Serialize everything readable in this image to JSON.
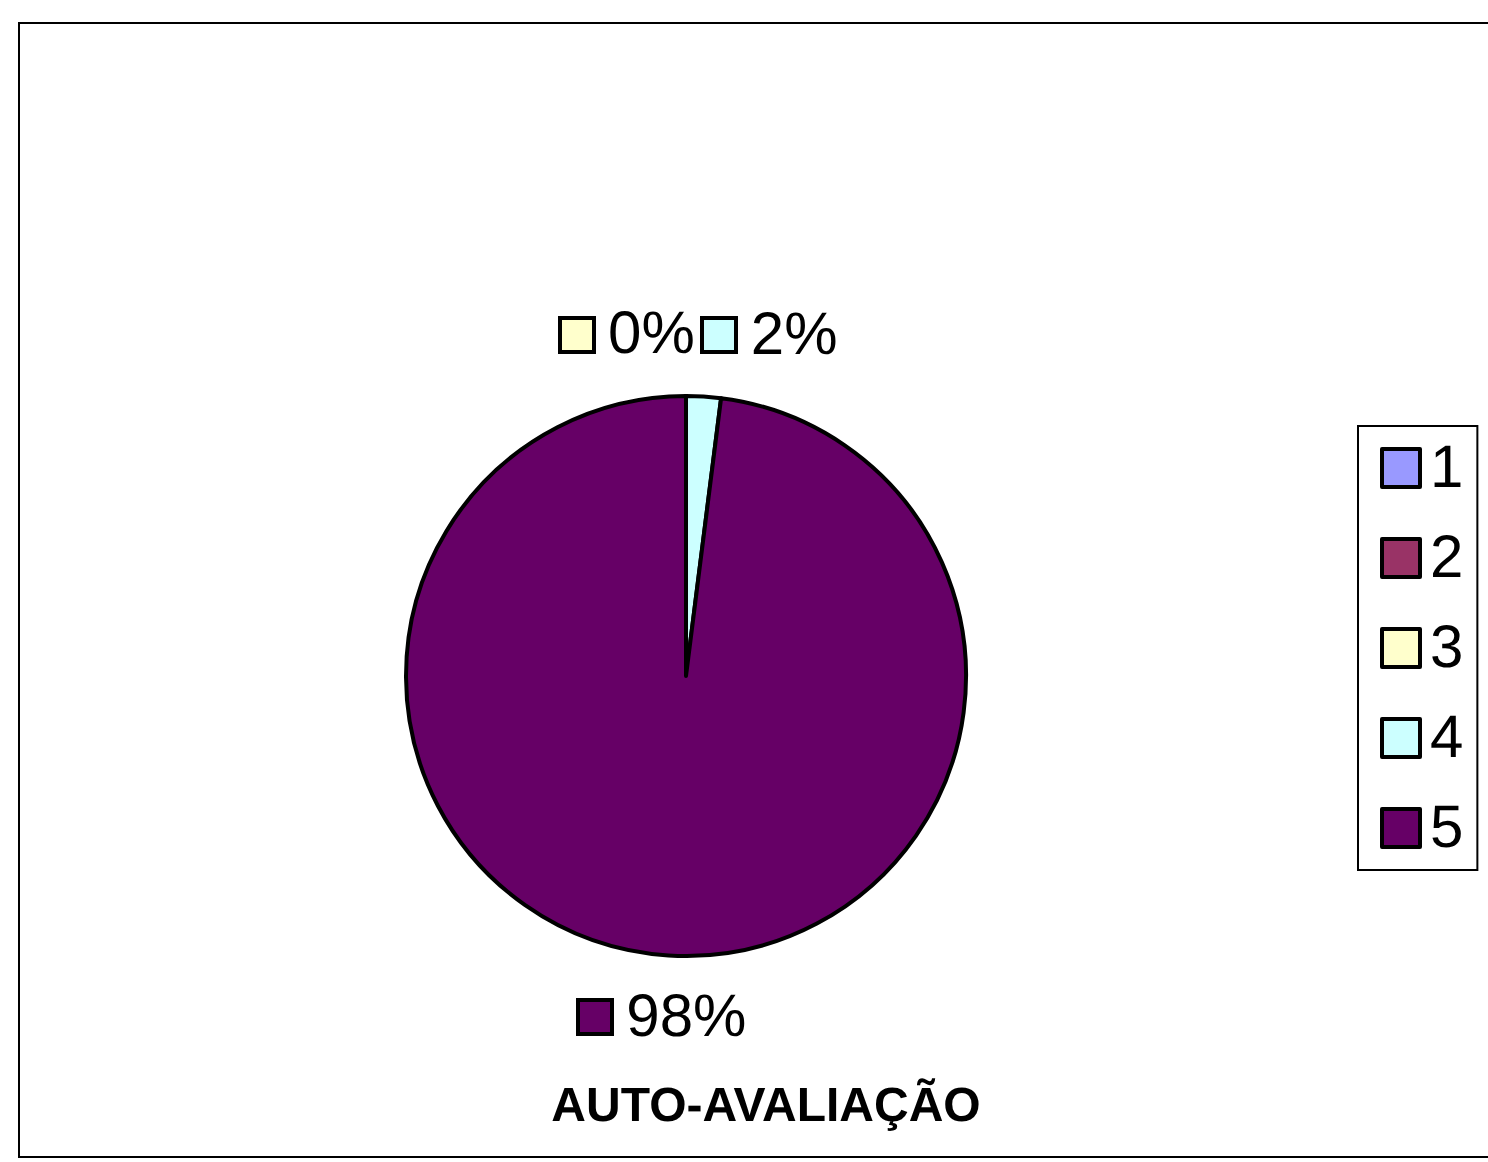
{
  "chart_data": {
    "type": "pie",
    "title": "AUTO-AVALIAÇÃO",
    "categories": [
      "1",
      "2",
      "3",
      "4",
      "5"
    ],
    "values": [
      0,
      0,
      0,
      2,
      98
    ],
    "colors": [
      "#9999ff",
      "#993366",
      "#ffffcc",
      "#ccffff",
      "#660066"
    ],
    "value_labels": [
      null,
      null,
      "0%",
      "2%",
      "98%"
    ],
    "legend": "right"
  }
}
